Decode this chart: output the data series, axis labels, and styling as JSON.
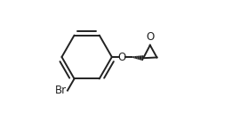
{
  "background_color": "#ffffff",
  "line_color": "#222222",
  "line_width": 1.4,
  "font_size": 8.5,
  "br_label": "Br",
  "o_label": "O",
  "o2_label": "O",
  "figsize": [
    2.7,
    1.28
  ],
  "dpi": 100,
  "bx": 0.255,
  "by": 0.5,
  "br": 0.185
}
